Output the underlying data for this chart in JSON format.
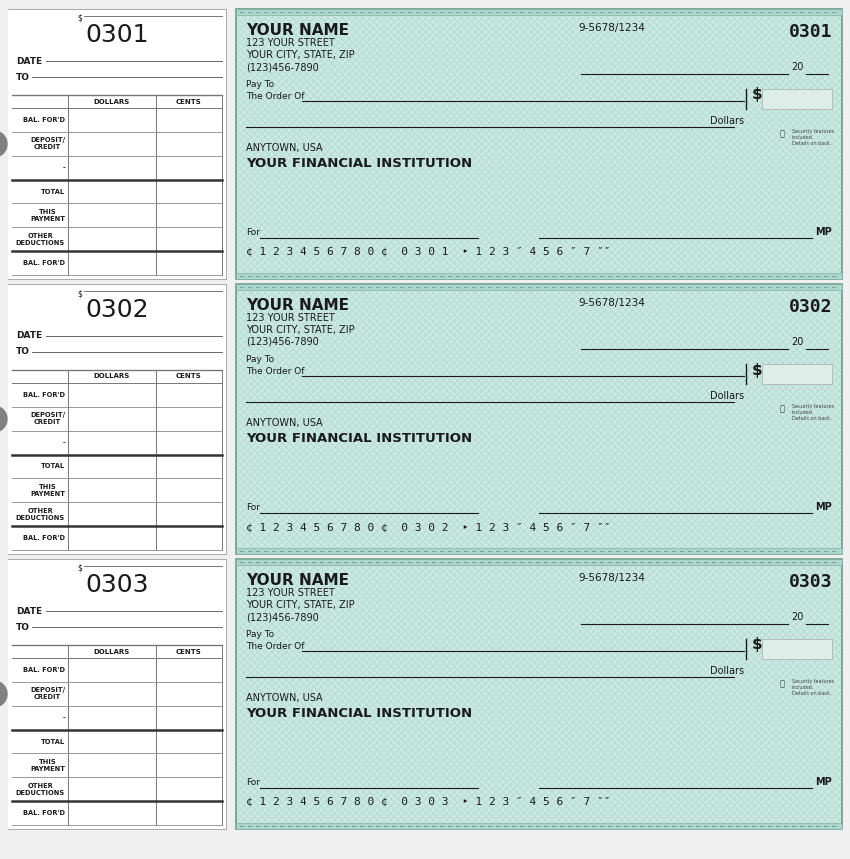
{
  "bg_color": "#f0f0f0",
  "check_bg": "#c8e8e0",
  "check_pattern_color": "#aad4cc",
  "border_outer": "#6a9a8a",
  "border_inner": "#7aaa9a",
  "stub_bg": "#ffffff",
  "stub_border": "#999999",
  "dark_text": "#1a1a1a",
  "gray_text": "#555555",
  "checks": [
    {
      "number": "0301"
    },
    {
      "number": "0302"
    },
    {
      "number": "0303"
    }
  ],
  "name": "YOUR NAME",
  "street": "123 YOUR STREET",
  "city": "YOUR CITY, STATE, ZIP",
  "phone": "(123)456-7890",
  "routing": "9-5678/1234",
  "bank_name": "YOUR FINANCIAL INSTITUTION",
  "bank_city": "ANYTOWN, USA",
  "dollar_label": "Dollars",
  "pay_to": "Pay To",
  "order_of": "The Order Of",
  "for_label": "For",
  "date_label": "DATE",
  "to_label": "TO",
  "mp_label": "MP",
  "security_label": "Security features\nincluded.\nDetails on back.",
  "stub_labels": [
    "BAL. FOR'D",
    "DEPOSIT/\nCREDIT",
    "-",
    "TOTAL",
    "THIS\nPAYMENT",
    "OTHER\nDEDUCTIONS",
    "BAL. FOR'D"
  ],
  "stub_col_labels": [
    "DOLLARS",
    "CENTS"
  ],
  "twenty_label": "20",
  "s_label": "$",
  "micr_prefix": "¢ 1 2 3 4 5 6 7 8 0 ¢",
  "micr_suffix": "1 2 3 ″ 4 5 6 ″ 7 ″″"
}
